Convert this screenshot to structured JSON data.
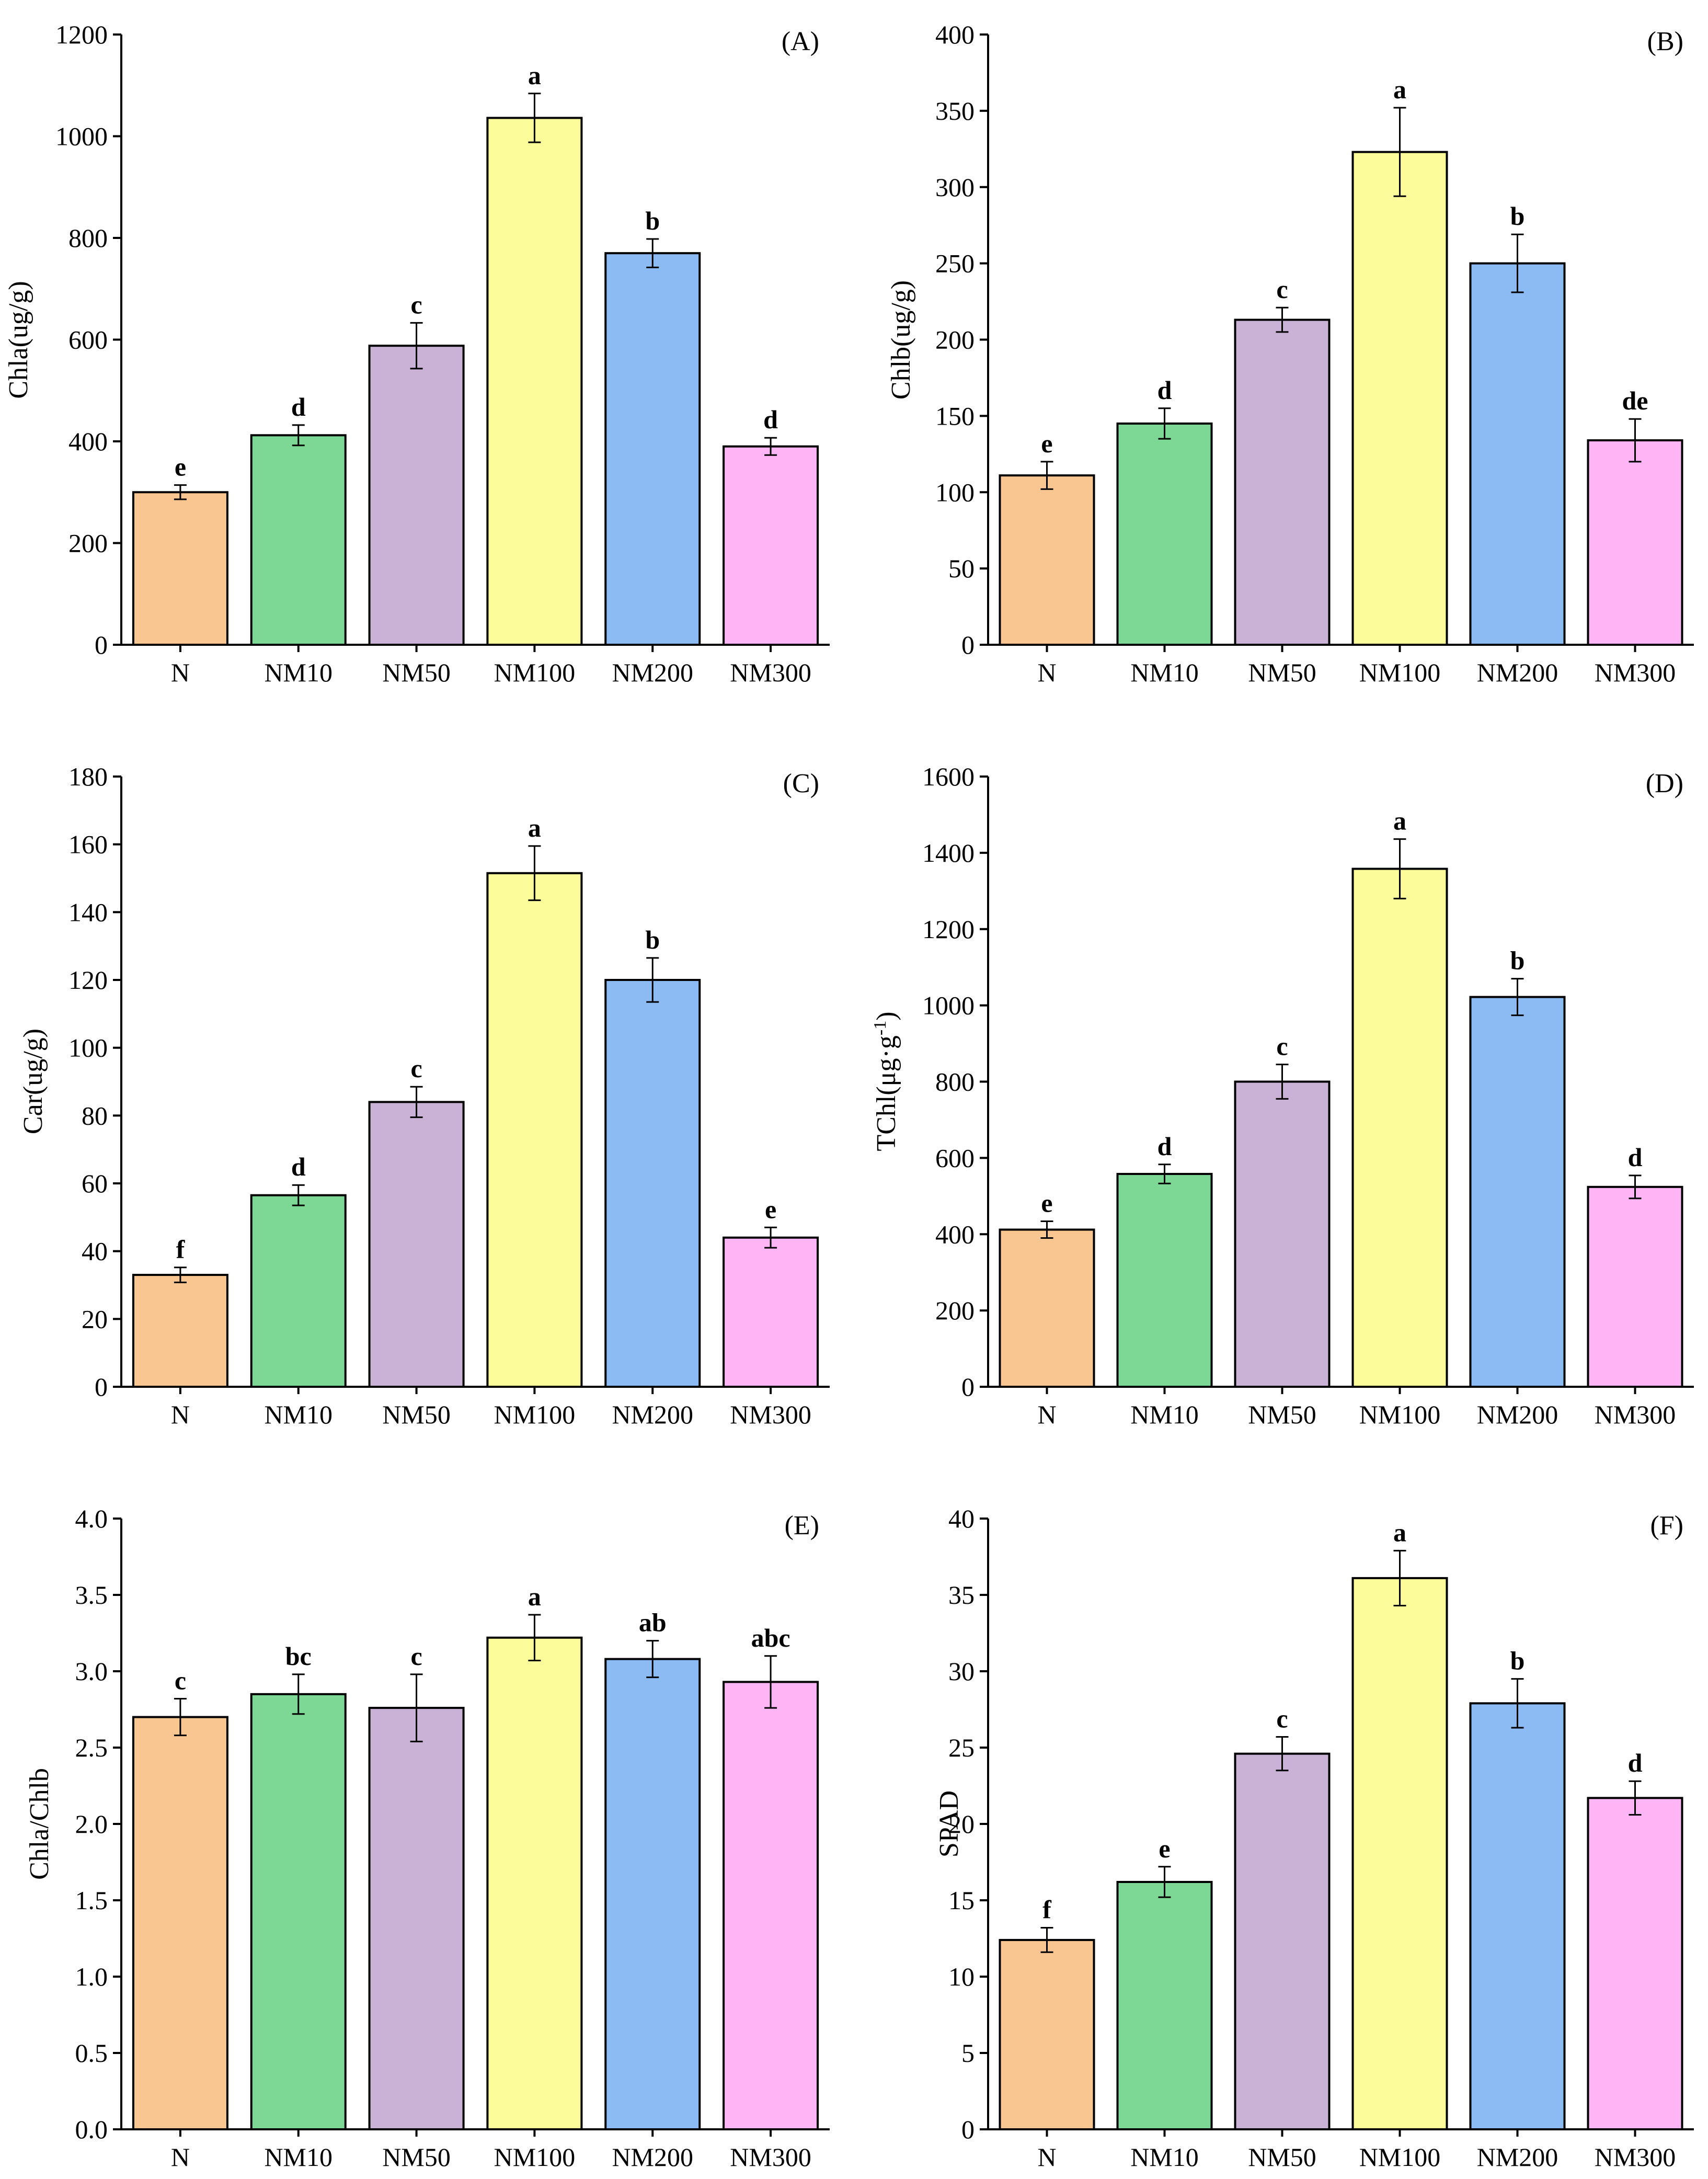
{
  "figure": {
    "categories": [
      "N",
      "NM10",
      "NM50",
      "NM100",
      "NM200",
      "NM300"
    ],
    "bar_colors": [
      "#f9c590",
      "#7dd896",
      "#c9b2d6",
      "#fcfc9a",
      "#8cbaf2",
      "#fdb5f5"
    ],
    "bar_edge_color": "#000000"
  },
  "chart_data": [
    {
      "type": "bar",
      "panel_label": "(A)",
      "ylabel_main": "Chla(ug/g)",
      "ylabel_sup": "",
      "ylabel_end": "",
      "categories": [
        "N",
        "NM10",
        "NM50",
        "NM100",
        "NM200",
        "NM300"
      ],
      "values": [
        300,
        412,
        588,
        1036,
        770,
        390
      ],
      "errors": [
        14,
        20,
        45,
        48,
        28,
        17
      ],
      "letters": [
        "e",
        "d",
        "c",
        "a",
        "b",
        "d"
      ],
      "ylim": [
        0,
        1200
      ],
      "yticks": [
        0,
        200,
        400,
        600,
        800,
        1000,
        1200
      ],
      "ytick_labels": [
        "0",
        "200",
        "400",
        "600",
        "800",
        "1000",
        "1200"
      ]
    },
    {
      "type": "bar",
      "panel_label": "(B)",
      "ylabel_main": "Chlb(ug/g)",
      "ylabel_sup": "",
      "ylabel_end": "",
      "categories": [
        "N",
        "NM10",
        "NM50",
        "NM100",
        "NM200",
        "NM300"
      ],
      "values": [
        111,
        145,
        213,
        323,
        250,
        134
      ],
      "errors": [
        9,
        10,
        8,
        29,
        19,
        14
      ],
      "letters": [
        "e",
        "d",
        "c",
        "a",
        "b",
        "de"
      ],
      "ylim": [
        0,
        400
      ],
      "yticks": [
        0,
        50,
        100,
        150,
        200,
        250,
        300,
        350,
        400
      ],
      "ytick_labels": [
        "0",
        "50",
        "100",
        "150",
        "200",
        "250",
        "300",
        "350",
        "400"
      ]
    },
    {
      "type": "bar",
      "panel_label": "(C)",
      "ylabel_main": "Car(ug/g)",
      "ylabel_sup": "",
      "ylabel_end": "",
      "categories": [
        "N",
        "NM10",
        "NM50",
        "NM100",
        "NM200",
        "NM300"
      ],
      "values": [
        33,
        56.5,
        84,
        151.5,
        120,
        44
      ],
      "errors": [
        2.2,
        3,
        4.5,
        8,
        6.5,
        3
      ],
      "letters": [
        "f",
        "d",
        "c",
        "a",
        "b",
        "e"
      ],
      "ylim": [
        0,
        180
      ],
      "yticks": [
        0,
        20,
        40,
        60,
        80,
        100,
        120,
        140,
        160,
        180
      ],
      "ytick_labels": [
        "0",
        "20",
        "40",
        "60",
        "80",
        "100",
        "120",
        "140",
        "160",
        "180"
      ]
    },
    {
      "type": "bar",
      "panel_label": "(D)",
      "ylabel_main": "TChl(μg·g",
      "ylabel_sup": "-1",
      "ylabel_end": ")",
      "categories": [
        "N",
        "NM10",
        "NM50",
        "NM100",
        "NM200",
        "NM300"
      ],
      "values": [
        412,
        558,
        800,
        1358,
        1022,
        524
      ],
      "errors": [
        22,
        25,
        45,
        78,
        48,
        30
      ],
      "letters": [
        "e",
        "d",
        "c",
        "a",
        "b",
        "d"
      ],
      "ylim": [
        0,
        1600
      ],
      "yticks": [
        0,
        200,
        400,
        600,
        800,
        1000,
        1200,
        1400,
        1600
      ],
      "ytick_labels": [
        "0",
        "200",
        "400",
        "600",
        "800",
        "1000",
        "1200",
        "1400",
        "1600"
      ]
    },
    {
      "type": "bar",
      "panel_label": "(E)",
      "ylabel_main": "Chla/Chlb",
      "ylabel_sup": "",
      "ylabel_end": "",
      "categories": [
        "N",
        "NM10",
        "NM50",
        "NM100",
        "NM200",
        "NM300"
      ],
      "values": [
        2.7,
        2.85,
        2.76,
        3.22,
        3.08,
        2.93
      ],
      "errors": [
        0.12,
        0.13,
        0.22,
        0.15,
        0.12,
        0.17
      ],
      "letters": [
        "c",
        "bc",
        "c",
        "a",
        "ab",
        "abc"
      ],
      "ylim": [
        0,
        4
      ],
      "yticks": [
        0,
        0.5,
        1,
        1.5,
        2,
        2.5,
        3,
        3.5,
        4
      ],
      "ytick_labels": [
        "0.0",
        "0.5",
        "1.0",
        "1.5",
        "2.0",
        "2.5",
        "3.0",
        "3.5",
        "4.0"
      ]
    },
    {
      "type": "bar",
      "panel_label": "(F)",
      "ylabel_main": "SPAD",
      "ylabel_sup": "",
      "ylabel_end": "",
      "categories": [
        "N",
        "NM10",
        "NM50",
        "NM100",
        "NM200",
        "NM300"
      ],
      "values": [
        12.4,
        16.2,
        24.6,
        36.1,
        27.9,
        21.7
      ],
      "errors": [
        0.8,
        1.0,
        1.1,
        1.8,
        1.6,
        1.1
      ],
      "letters": [
        "f",
        "e",
        "c",
        "a",
        "b",
        "d"
      ],
      "ylim": [
        0,
        40
      ],
      "yticks": [
        0,
        5,
        10,
        15,
        20,
        25,
        30,
        35,
        40
      ],
      "ytick_labels": [
        "0",
        "5",
        "10",
        "15",
        "20",
        "25",
        "30",
        "35",
        "40"
      ]
    }
  ]
}
